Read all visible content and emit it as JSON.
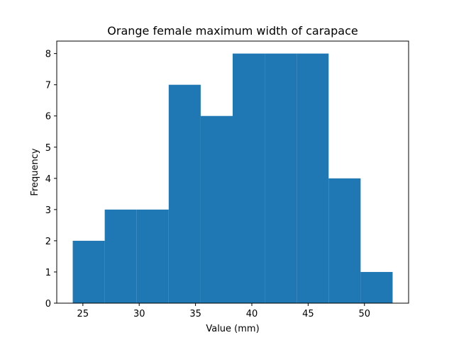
{
  "chart_data": {
    "type": "bar",
    "subtype": "histogram",
    "title": "Orange female maximum width of carapace",
    "xlabel": "Value (mm)",
    "ylabel": "Frequency",
    "bins": [
      {
        "x0": 24.1,
        "x1": 26.94,
        "count": 2
      },
      {
        "x0": 26.94,
        "x1": 29.78,
        "count": 3
      },
      {
        "x0": 29.78,
        "x1": 32.62,
        "count": 3
      },
      {
        "x0": 32.62,
        "x1": 35.46,
        "count": 7
      },
      {
        "x0": 35.46,
        "x1": 38.3,
        "count": 6
      },
      {
        "x0": 38.3,
        "x1": 41.14,
        "count": 8
      },
      {
        "x0": 41.14,
        "x1": 43.98,
        "count": 8
      },
      {
        "x0": 43.98,
        "x1": 46.82,
        "count": 8
      },
      {
        "x0": 46.82,
        "x1": 49.66,
        "count": 4
      },
      {
        "x0": 49.66,
        "x1": 52.5,
        "count": 1
      }
    ],
    "xlim": [
      22.68,
      53.92
    ],
    "ylim": [
      0,
      8.4
    ],
    "xticks": [
      25,
      30,
      35,
      40,
      45,
      50
    ],
    "yticks": [
      0,
      1,
      2,
      3,
      4,
      5,
      6,
      7,
      8
    ],
    "grid": false,
    "bar_color": "#1f77b4"
  }
}
